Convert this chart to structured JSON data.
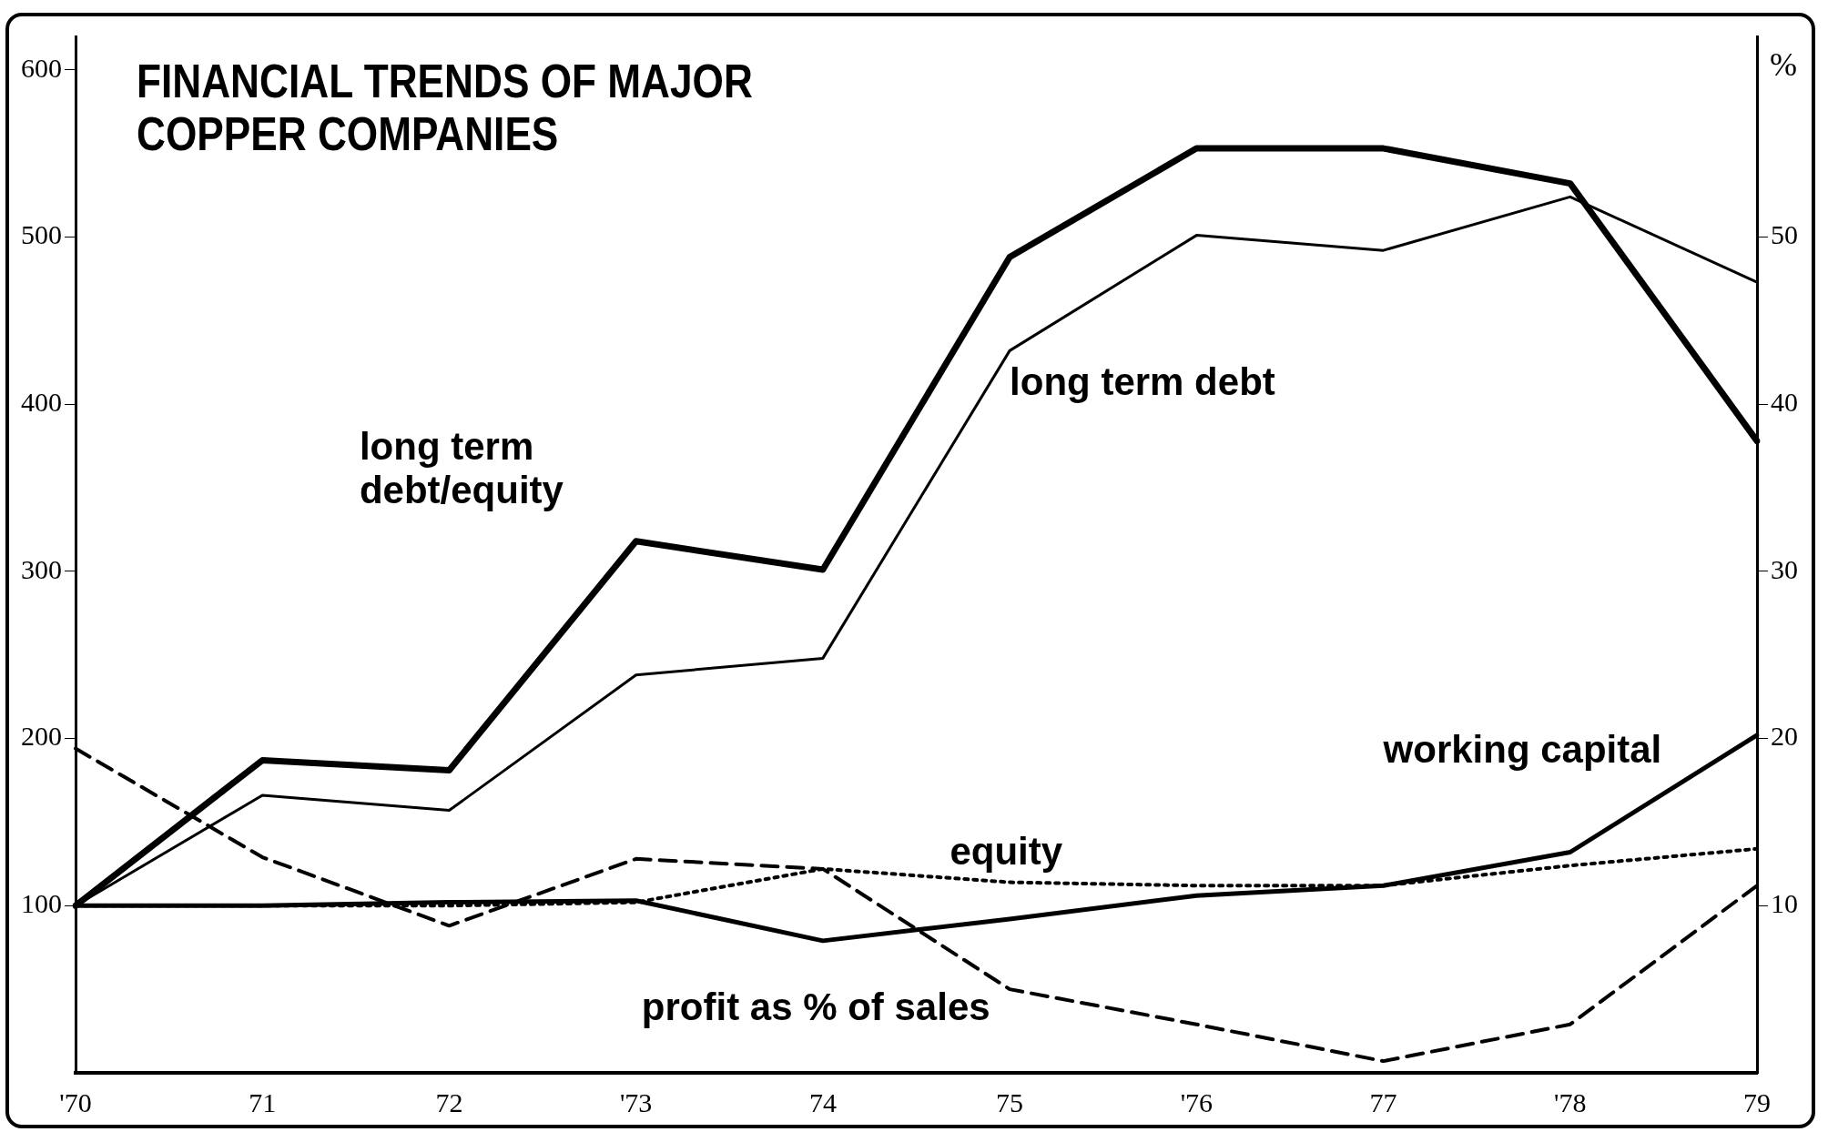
{
  "chart_data": {
    "type": "line",
    "title": "FINANCIAL TRENDS OF MAJOR COPPER COMPANIES",
    "y2label": "%",
    "categories": [
      "'70",
      "71",
      "72",
      "'73",
      "74",
      "75",
      "'76",
      "77",
      "'78",
      "79"
    ],
    "series": [
      {
        "name": "long term debt/equity",
        "color": "#000000",
        "line_style": "solid",
        "values": [
          100,
          187,
          181,
          318,
          301,
          488,
          553,
          553,
          532,
          378
        ]
      },
      {
        "name": "long term debt",
        "color": "#000000",
        "line_style": "solid",
        "values": [
          100,
          166,
          157,
          238,
          248,
          432,
          501,
          492,
          524,
          473
        ]
      },
      {
        "name": "working capital",
        "color": "#000000",
        "line_style": "solid",
        "values": [
          100,
          100,
          102,
          103,
          79,
          92,
          106,
          112,
          132,
          202
        ]
      },
      {
        "name": "equity",
        "color": "#000000",
        "line_style": "dotted",
        "values": [
          100,
          100,
          100,
          102,
          122,
          114,
          112,
          112,
          124,
          134
        ]
      },
      {
        "name": "profit as % of sales",
        "color": "#000000",
        "line_style": "dashed",
        "axis": "y2",
        "values": [
          19.4,
          12.9,
          8.8,
          12.8,
          12.2,
          5,
          2.9,
          0.7,
          2.9,
          11.2
        ]
      }
    ],
    "ylim": [
      0,
      620
    ],
    "yticks": [
      100,
      200,
      300,
      400,
      500,
      600
    ],
    "y2lim": [
      0,
      62
    ],
    "y2ticks": [
      10,
      20,
      30,
      40,
      50
    ],
    "grid": false,
    "legend": false,
    "marker": "none"
  }
}
